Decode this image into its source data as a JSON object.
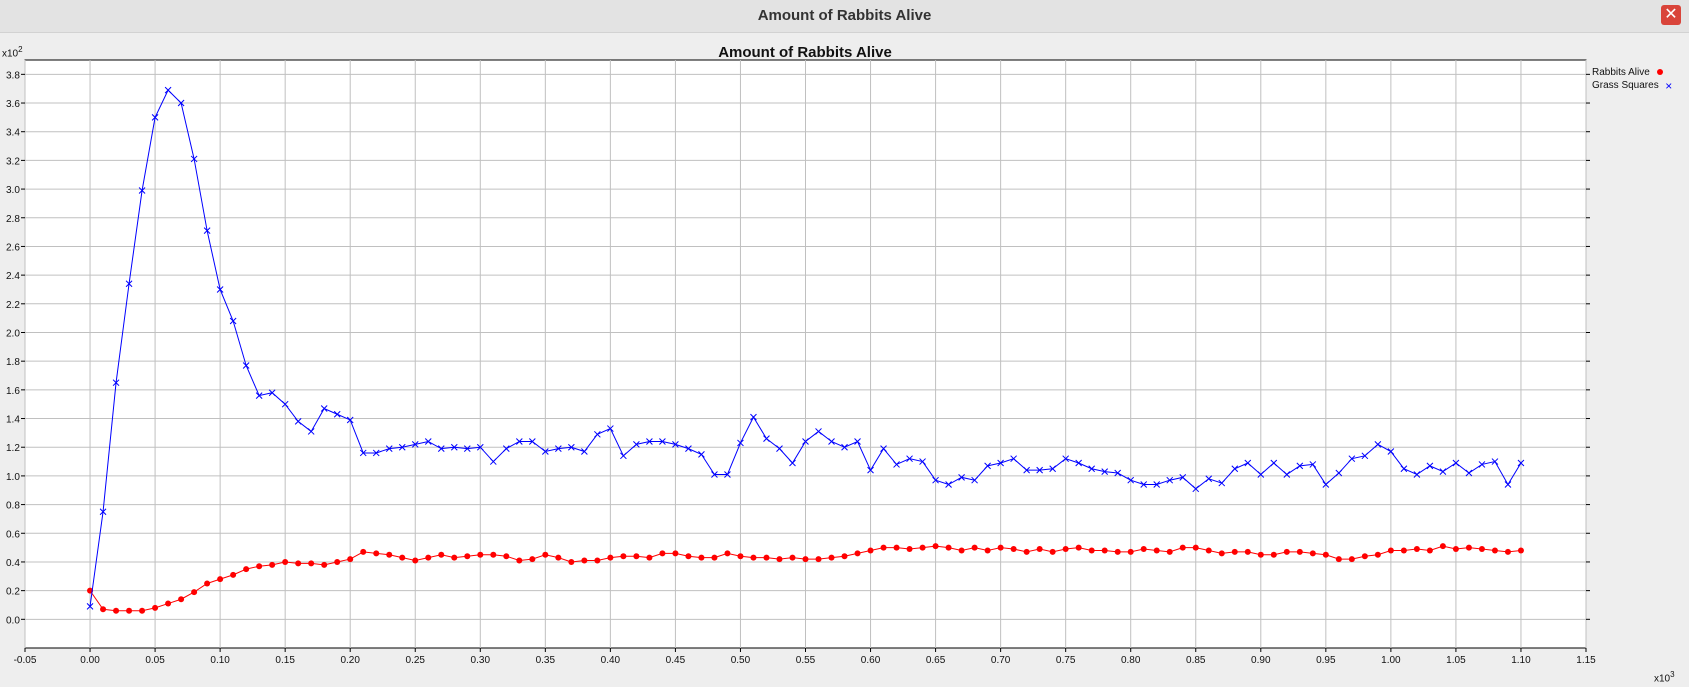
{
  "window": {
    "title": "Amount of Rabbits Alive",
    "close_label": "✕"
  },
  "chart_data": {
    "type": "line",
    "title": "Amount of Rabbits Alive",
    "xlabel": "",
    "ylabel": "",
    "y_exponent": "x10",
    "y_exponent_power": "2",
    "x_exponent": "x10",
    "x_exponent_power": "3",
    "xlim": [
      -0.05,
      1.15
    ],
    "ylim": [
      -0.2,
      3.9
    ],
    "xticks": [
      "-0.05",
      "0.00",
      "0.05",
      "0.10",
      "0.15",
      "0.20",
      "0.25",
      "0.30",
      "0.35",
      "0.40",
      "0.45",
      "0.50",
      "0.55",
      "0.60",
      "0.65",
      "0.70",
      "0.75",
      "0.80",
      "0.85",
      "0.90",
      "0.95",
      "1.00",
      "1.05",
      "1.10",
      "1.15"
    ],
    "yticks": [
      "0.0",
      "0.2",
      "0.4",
      "0.6",
      "0.8",
      "1.0",
      "1.2",
      "1.4",
      "1.6",
      "1.8",
      "2.0",
      "2.2",
      "2.4",
      "2.6",
      "2.8",
      "3.0",
      "3.2",
      "3.4",
      "3.6",
      "3.8"
    ],
    "grid": true,
    "legend_position": "right",
    "x_step": 0.01,
    "series": [
      {
        "name": "Rabbits Alive",
        "color": "#ff0000",
        "marker": "dot",
        "values": [
          0.2,
          0.07,
          0.06,
          0.06,
          0.06,
          0.08,
          0.11,
          0.14,
          0.19,
          0.25,
          0.28,
          0.31,
          0.35,
          0.37,
          0.38,
          0.4,
          0.39,
          0.39,
          0.38,
          0.4,
          0.42,
          0.47,
          0.46,
          0.45,
          0.43,
          0.41,
          0.43,
          0.45,
          0.43,
          0.44,
          0.45,
          0.45,
          0.44,
          0.41,
          0.42,
          0.45,
          0.43,
          0.4,
          0.41,
          0.41,
          0.43,
          0.44,
          0.44,
          0.43,
          0.46,
          0.46,
          0.44,
          0.43,
          0.43,
          0.46,
          0.44,
          0.43,
          0.43,
          0.42,
          0.43,
          0.42,
          0.42,
          0.43,
          0.44,
          0.46,
          0.48,
          0.5,
          0.5,
          0.49,
          0.5,
          0.51,
          0.5,
          0.48,
          0.5,
          0.48,
          0.5,
          0.49,
          0.47,
          0.49,
          0.47,
          0.49,
          0.5,
          0.48,
          0.48,
          0.47,
          0.47,
          0.49,
          0.48,
          0.47,
          0.5,
          0.5,
          0.48,
          0.46,
          0.47,
          0.47,
          0.45,
          0.45,
          0.47,
          0.47,
          0.46,
          0.45,
          0.42,
          0.42,
          0.44,
          0.45,
          0.48,
          0.48,
          0.49,
          0.48,
          0.51,
          0.49,
          0.5,
          0.49,
          0.48,
          0.47,
          0.48
        ]
      },
      {
        "name": "Grass Squares",
        "color": "#0000ff",
        "marker": "x",
        "values": [
          0.09,
          0.75,
          1.65,
          2.34,
          2.99,
          3.5,
          3.69,
          3.6,
          3.21,
          2.71,
          2.3,
          2.08,
          1.77,
          1.56,
          1.58,
          1.5,
          1.38,
          1.31,
          1.47,
          1.43,
          1.39,
          1.16,
          1.16,
          1.19,
          1.2,
          1.22,
          1.24,
          1.19,
          1.2,
          1.19,
          1.2,
          1.1,
          1.19,
          1.24,
          1.24,
          1.17,
          1.19,
          1.2,
          1.17,
          1.29,
          1.33,
          1.14,
          1.22,
          1.24,
          1.24,
          1.22,
          1.19,
          1.15,
          1.01,
          1.01,
          1.23,
          1.41,
          1.26,
          1.19,
          1.09,
          1.24,
          1.31,
          1.24,
          1.2,
          1.24,
          1.04,
          1.19,
          1.08,
          1.12,
          1.1,
          0.97,
          0.94,
          0.99,
          0.97,
          1.07,
          1.09,
          1.12,
          1.04,
          1.04,
          1.05,
          1.12,
          1.09,
          1.05,
          1.03,
          1.02,
          0.97,
          0.94,
          0.94,
          0.97,
          0.99,
          0.91,
          0.98,
          0.95,
          1.05,
          1.09,
          1.01,
          1.09,
          1.01,
          1.07,
          1.08,
          0.94,
          1.02,
          1.12,
          1.14,
          1.22,
          1.17,
          1.05,
          1.01,
          1.07,
          1.03,
          1.09,
          1.02,
          1.08,
          1.1,
          0.94,
          1.09
        ]
      }
    ]
  }
}
